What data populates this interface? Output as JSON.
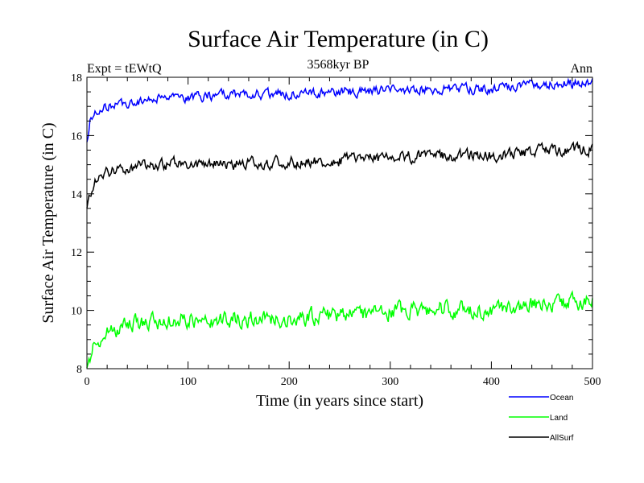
{
  "chart_data": {
    "type": "line",
    "title": "Surface Air Temperature (in C)",
    "subtitle_left": "Expt = tEWtQ",
    "subtitle_center": "3568kyr BP",
    "subtitle_right": "Ann",
    "xlabel": "Time (in years since start)",
    "ylabel": "Surface Air Temperature (in C)",
    "xlim": [
      0,
      500
    ],
    "ylim": [
      8,
      18
    ],
    "xticks": [
      0,
      100,
      200,
      300,
      400,
      500
    ],
    "yticks": [
      8,
      10,
      12,
      14,
      16,
      18
    ],
    "series": [
      {
        "name": "Ocean",
        "color": "#0000ff",
        "anchors": [
          [
            0,
            15.9
          ],
          [
            3,
            16.5
          ],
          [
            10,
            16.8
          ],
          [
            20,
            17.0
          ],
          [
            50,
            17.2
          ],
          [
            100,
            17.35
          ],
          [
            150,
            17.4
          ],
          [
            200,
            17.45
          ],
          [
            250,
            17.5
          ],
          [
            300,
            17.55
          ],
          [
            350,
            17.6
          ],
          [
            400,
            17.6
          ],
          [
            450,
            17.75
          ],
          [
            500,
            17.8
          ]
        ],
        "noise": 0.12
      },
      {
        "name": "Land",
        "color": "#00ff00",
        "anchors": [
          [
            0,
            8.2
          ],
          [
            3,
            8.5
          ],
          [
            10,
            9.0
          ],
          [
            20,
            9.3
          ],
          [
            50,
            9.6
          ],
          [
            100,
            9.7
          ],
          [
            150,
            9.7
          ],
          [
            200,
            9.75
          ],
          [
            250,
            9.85
          ],
          [
            300,
            9.95
          ],
          [
            350,
            10.05
          ],
          [
            400,
            10.0
          ],
          [
            450,
            10.25
          ],
          [
            500,
            10.3
          ]
        ],
        "noise": 0.2
      },
      {
        "name": "AllSurf",
        "color": "#000000",
        "anchors": [
          [
            0,
            13.6
          ],
          [
            3,
            14.0
          ],
          [
            10,
            14.5
          ],
          [
            20,
            14.75
          ],
          [
            50,
            14.95
          ],
          [
            100,
            15.05
          ],
          [
            150,
            15.05
          ],
          [
            200,
            15.1
          ],
          [
            250,
            15.15
          ],
          [
            300,
            15.25
          ],
          [
            350,
            15.3
          ],
          [
            400,
            15.3
          ],
          [
            450,
            15.5
          ],
          [
            500,
            15.55
          ]
        ],
        "noise": 0.14
      }
    ],
    "legend_position": "bottom-right",
    "grid": false
  }
}
